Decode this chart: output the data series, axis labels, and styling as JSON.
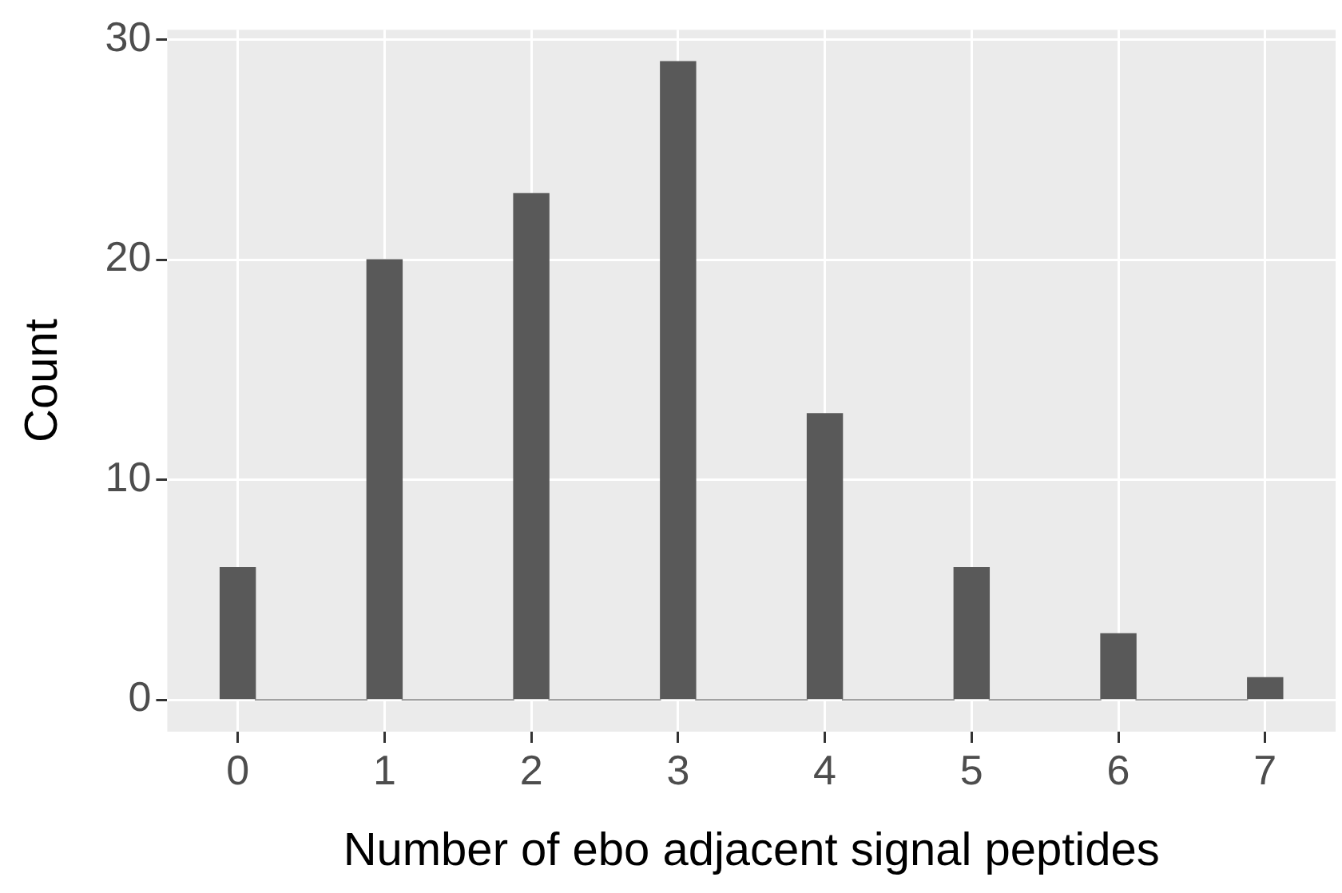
{
  "chart_data": {
    "type": "histogram",
    "xlabel": "Number of ebo adjacent signal peptides",
    "ylabel": "Count",
    "bins": [
      -0.12,
      0.12,
      0.88,
      1.12,
      1.88,
      2.12,
      2.88,
      3.12,
      3.88,
      4.12,
      4.88,
      5.12,
      5.88,
      6.12,
      6.88,
      7.12
    ],
    "values": [
      6,
      0,
      20,
      0,
      23,
      0,
      29,
      0,
      13,
      0,
      6,
      0,
      3,
      0,
      1
    ],
    "color": "#595959",
    "xlim": [
      -0.48,
      7.48
    ],
    "xticks": [
      0,
      1,
      2,
      3,
      4,
      5,
      6,
      7
    ],
    "ylim": [
      -1.45,
      30.45
    ],
    "yticks": [
      0,
      10,
      20,
      30
    ],
    "grid": true
  }
}
